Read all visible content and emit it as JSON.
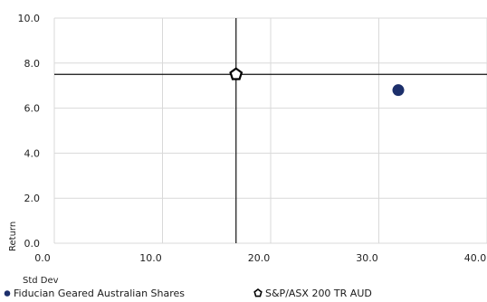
{
  "chart_data": {
    "type": "scatter",
    "title": "",
    "xlabel": "Std Dev",
    "ylabel": "Return",
    "xlim": [
      0,
      40
    ],
    "ylim": [
      0,
      10
    ],
    "x_ticks": [
      0,
      10,
      20,
      30,
      40
    ],
    "y_ticks": [
      0,
      2,
      4,
      6,
      8,
      10
    ],
    "x_tick_labels": [
      "0.0",
      "10.0",
      "20.0",
      "30.0",
      "40.0"
    ],
    "y_tick_labels": [
      "0.0",
      "2.0",
      "4.0",
      "6.0",
      "8.0",
      "10.0"
    ],
    "grid": true,
    "crosshair": {
      "x": 16.8,
      "y": 7.5
    },
    "series": [
      {
        "name": "Fiducian Geared Australian Shares",
        "x": 31.8,
        "y": 6.8,
        "marker": "filled-circle",
        "color": "#1c2f6b"
      },
      {
        "name": "S&P/ASX 200 TR AUD",
        "x": 16.8,
        "y": 7.5,
        "marker": "open-pentagon",
        "color": "#000000"
      }
    ],
    "legend_position": "bottom"
  }
}
